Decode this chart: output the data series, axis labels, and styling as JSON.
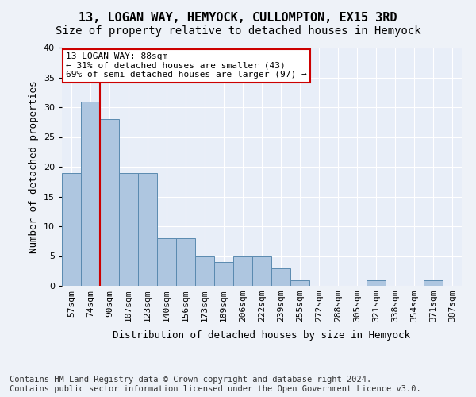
{
  "title1": "13, LOGAN WAY, HEMYOCK, CULLOMPTON, EX15 3RD",
  "title2": "Size of property relative to detached houses in Hemyock",
  "xlabel": "Distribution of detached houses by size in Hemyock",
  "ylabel": "Number of detached properties",
  "categories": [
    "57sqm",
    "74sqm",
    "90sqm",
    "107sqm",
    "123sqm",
    "140sqm",
    "156sqm",
    "173sqm",
    "189sqm",
    "206sqm",
    "222sqm",
    "239sqm",
    "255sqm",
    "272sqm",
    "288sqm",
    "305sqm",
    "321sqm",
    "338sqm",
    "354sqm",
    "371sqm",
    "387sqm"
  ],
  "values": [
    19,
    31,
    28,
    19,
    19,
    8,
    8,
    5,
    4,
    5,
    5,
    3,
    1,
    0,
    0,
    0,
    1,
    0,
    0,
    1,
    0
  ],
  "bar_color": "#aec6e0",
  "bar_edge_color": "#5a8ab0",
  "vline_color": "#cc0000",
  "annotation_text": "13 LOGAN WAY: 88sqm\n← 31% of detached houses are smaller (43)\n69% of semi-detached houses are larger (97) →",
  "annotation_box_color": "#ffffff",
  "annotation_box_edge_color": "#cc0000",
  "ylim": [
    0,
    40
  ],
  "yticks": [
    0,
    5,
    10,
    15,
    20,
    25,
    30,
    35,
    40
  ],
  "footer_text": "Contains HM Land Registry data © Crown copyright and database right 2024.\nContains public sector information licensed under the Open Government Licence v3.0.",
  "fig_bg_color": "#eef2f8",
  "plot_bg_color": "#e8eef8",
  "grid_color": "#ffffff",
  "title_fontsize": 11,
  "subtitle_fontsize": 10,
  "axis_label_fontsize": 9,
  "tick_fontsize": 8,
  "footer_fontsize": 7.5,
  "annotation_fontsize": 8
}
